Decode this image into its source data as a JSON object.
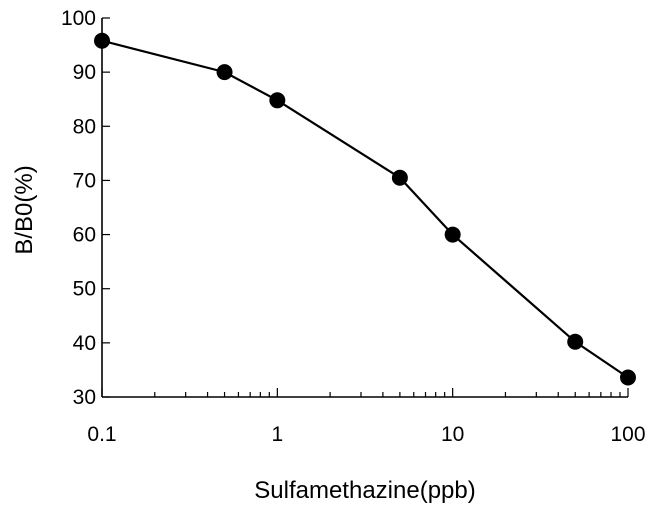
{
  "chart_data": {
    "type": "line",
    "xlabel": "Sulfamethazine(ppb)",
    "ylabel": "B/B0(%)",
    "x_scale": "log",
    "xlim": [
      0.1,
      100
    ],
    "ylim": [
      30,
      100
    ],
    "x_ticks": [
      0.1,
      1,
      10,
      100
    ],
    "x_tick_labels": [
      "0.1",
      "1",
      "10",
      "100"
    ],
    "y_ticks": [
      30,
      40,
      50,
      60,
      70,
      80,
      90,
      100
    ],
    "y_tick_labels": [
      "30",
      "40",
      "50",
      "60",
      "70",
      "80",
      "90",
      "100"
    ],
    "grid": false,
    "series": [
      {
        "x": [
          0.1,
          0.5,
          1,
          5,
          10,
          50,
          100
        ],
        "y": [
          95.8,
          90,
          84.8,
          70.5,
          60,
          40.2,
          33.6
        ]
      }
    ]
  }
}
